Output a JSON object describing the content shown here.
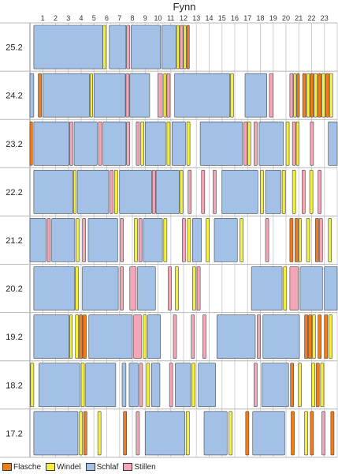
{
  "chart_data": {
    "type": "timeline",
    "title": "Fynn",
    "x_ticks": [
      "1",
      "2",
      "3",
      "4",
      "5",
      "6",
      "7",
      "8",
      "9",
      "10",
      "11",
      "12",
      "13",
      "14",
      "15",
      "16",
      "17",
      "18",
      "19",
      "20",
      "21",
      "22",
      "23"
    ],
    "x_range": [
      0,
      24
    ],
    "rows": [
      "25.2",
      "24.2",
      "23.2",
      "22.2",
      "21.2",
      "20.2",
      "19.2",
      "18.2",
      "17.2"
    ],
    "legend": [
      {
        "key": "flasche",
        "label": "Flasche",
        "color": "#f07d1a"
      },
      {
        "key": "windel",
        "label": "Windel",
        "color": "#f4ee3c"
      },
      {
        "key": "schlaf",
        "label": "Schlaf",
        "color": "#a3c1e6"
      },
      {
        "key": "stillen",
        "label": "Stillen",
        "color": "#f4a6b8"
      }
    ],
    "events": {
      "25.2": [
        {
          "type": "schlaf",
          "start": 0.3,
          "end": 5.7
        },
        {
          "type": "windel",
          "start": 5.7,
          "end": 5.95
        },
        {
          "type": "schlaf",
          "start": 6.2,
          "end": 7.5
        },
        {
          "type": "stillen",
          "start": 7.55,
          "end": 7.8
        },
        {
          "type": "schlaf",
          "start": 7.9,
          "end": 10.2
        },
        {
          "type": "schlaf",
          "start": 10.3,
          "end": 11.4
        },
        {
          "type": "windel",
          "start": 11.45,
          "end": 11.65
        },
        {
          "type": "stillen",
          "start": 11.7,
          "end": 11.95
        },
        {
          "type": "windel",
          "start": 12.0,
          "end": 12.2
        },
        {
          "type": "flasche",
          "start": 12.25,
          "end": 12.45
        }
      ],
      "24.2": [
        {
          "type": "schlaf",
          "start": 0.0,
          "end": 0.3
        },
        {
          "type": "flasche",
          "start": 0.65,
          "end": 0.9
        },
        {
          "type": "schlaf",
          "start": 1.0,
          "end": 4.65
        },
        {
          "type": "windel",
          "start": 4.7,
          "end": 4.9
        },
        {
          "type": "schlaf",
          "start": 5.0,
          "end": 7.45
        },
        {
          "type": "stillen",
          "start": 7.5,
          "end": 7.75
        },
        {
          "type": "schlaf",
          "start": 7.8,
          "end": 9.35
        },
        {
          "type": "stillen",
          "start": 10.0,
          "end": 10.35
        },
        {
          "type": "windel",
          "start": 10.45,
          "end": 10.65
        },
        {
          "type": "stillen",
          "start": 10.7,
          "end": 10.95
        },
        {
          "type": "schlaf",
          "start": 11.3,
          "end": 15.6
        },
        {
          "type": "windel",
          "start": 15.65,
          "end": 15.9
        },
        {
          "type": "schlaf",
          "start": 16.8,
          "end": 18.5
        },
        {
          "type": "stillen",
          "start": 18.7,
          "end": 19.0
        },
        {
          "type": "stillen",
          "start": 20.3,
          "end": 20.55
        },
        {
          "type": "windel",
          "start": 20.6,
          "end": 20.8
        },
        {
          "type": "flasche",
          "start": 20.85,
          "end": 21.05
        },
        {
          "type": "flasche",
          "start": 21.3,
          "end": 21.55
        },
        {
          "type": "windel",
          "start": 21.6,
          "end": 21.85
        },
        {
          "type": "flasche",
          "start": 21.9,
          "end": 22.15
        },
        {
          "type": "windel",
          "start": 22.2,
          "end": 22.45
        },
        {
          "type": "flasche",
          "start": 22.5,
          "end": 22.75
        },
        {
          "type": "windel",
          "start": 22.8,
          "end": 23.05
        },
        {
          "type": "flasche",
          "start": 23.1,
          "end": 23.35
        },
        {
          "type": "windel",
          "start": 23.4,
          "end": 23.65
        }
      ],
      "23.2": [
        {
          "type": "flasche",
          "start": 0.0,
          "end": 0.2
        },
        {
          "type": "schlaf",
          "start": 0.3,
          "end": 3.05
        },
        {
          "type": "stillen",
          "start": 3.1,
          "end": 3.35
        },
        {
          "type": "schlaf",
          "start": 3.45,
          "end": 5.25
        },
        {
          "type": "stillen",
          "start": 5.35,
          "end": 5.6
        },
        {
          "type": "schlaf",
          "start": 5.7,
          "end": 7.5
        },
        {
          "type": "stillen",
          "start": 7.55,
          "end": 7.8
        },
        {
          "type": "stillen",
          "start": 8.3,
          "end": 8.55
        },
        {
          "type": "windel",
          "start": 8.65,
          "end": 8.9
        },
        {
          "type": "schlaf",
          "start": 9.0,
          "end": 10.6
        },
        {
          "type": "windel",
          "start": 10.7,
          "end": 10.95
        },
        {
          "type": "schlaf",
          "start": 11.1,
          "end": 12.15
        },
        {
          "type": "windel",
          "start": 12.25,
          "end": 12.5
        },
        {
          "type": "schlaf",
          "start": 13.3,
          "end": 16.6
        },
        {
          "type": "stillen",
          "start": 16.7,
          "end": 16.95
        },
        {
          "type": "windel",
          "start": 17.0,
          "end": 17.25
        },
        {
          "type": "stillen",
          "start": 17.5,
          "end": 17.75
        },
        {
          "type": "schlaf",
          "start": 17.9,
          "end": 19.8
        },
        {
          "type": "windel",
          "start": 20.0,
          "end": 20.25
        },
        {
          "type": "stillen",
          "start": 20.5,
          "end": 20.75
        },
        {
          "type": "windel",
          "start": 20.8,
          "end": 21.0
        },
        {
          "type": "stillen",
          "start": 21.9,
          "end": 22.15
        },
        {
          "type": "schlaf",
          "start": 23.3,
          "end": 24.0
        }
      ],
      "22.2": [
        {
          "type": "schlaf",
          "start": 0.3,
          "end": 3.35
        },
        {
          "type": "windel",
          "start": 3.4,
          "end": 3.6
        },
        {
          "type": "schlaf",
          "start": 3.7,
          "end": 6.15
        },
        {
          "type": "stillen",
          "start": 6.25,
          "end": 6.5
        },
        {
          "type": "windel",
          "start": 6.6,
          "end": 6.85
        },
        {
          "type": "schlaf",
          "start": 7.0,
          "end": 9.5
        },
        {
          "type": "stillen",
          "start": 9.55,
          "end": 9.8
        },
        {
          "type": "schlaf",
          "start": 9.85,
          "end": 11.65
        },
        {
          "type": "windel",
          "start": 11.7,
          "end": 11.95
        },
        {
          "type": "stillen",
          "start": 12.35,
          "end": 12.6
        },
        {
          "type": "stillen",
          "start": 13.4,
          "end": 13.65
        },
        {
          "type": "stillen",
          "start": 14.3,
          "end": 14.55
        },
        {
          "type": "schlaf",
          "start": 15.0,
          "end": 17.8
        },
        {
          "type": "windel",
          "start": 18.0,
          "end": 18.25
        },
        {
          "type": "schlaf",
          "start": 18.4,
          "end": 19.6
        },
        {
          "type": "windel",
          "start": 19.7,
          "end": 19.95
        },
        {
          "type": "windel",
          "start": 20.5,
          "end": 20.75
        },
        {
          "type": "stillen",
          "start": 21.25,
          "end": 21.5
        },
        {
          "type": "windel",
          "start": 21.85,
          "end": 22.1
        },
        {
          "type": "stillen",
          "start": 22.5,
          "end": 22.75
        }
      ],
      "21.2": [
        {
          "type": "schlaf",
          "start": 0.0,
          "end": 1.25
        },
        {
          "type": "stillen",
          "start": 1.35,
          "end": 1.6
        },
        {
          "type": "schlaf",
          "start": 1.7,
          "end": 3.5
        },
        {
          "type": "windel",
          "start": 3.6,
          "end": 3.85
        },
        {
          "type": "stillen",
          "start": 4.1,
          "end": 4.35
        },
        {
          "type": "schlaf",
          "start": 4.55,
          "end": 6.85
        },
        {
          "type": "stillen",
          "start": 7.05,
          "end": 7.3
        },
        {
          "type": "windel",
          "start": 8.15,
          "end": 8.4
        },
        {
          "type": "stillen",
          "start": 8.5,
          "end": 8.75
        },
        {
          "type": "schlaf",
          "start": 8.85,
          "end": 10.35
        },
        {
          "type": "windel",
          "start": 10.45,
          "end": 10.7
        },
        {
          "type": "stillen",
          "start": 11.9,
          "end": 12.15
        },
        {
          "type": "windel",
          "start": 12.3,
          "end": 12.55
        },
        {
          "type": "schlaf",
          "start": 12.7,
          "end": 13.4
        },
        {
          "type": "windel",
          "start": 13.75,
          "end": 14.0
        },
        {
          "type": "schlaf",
          "start": 14.4,
          "end": 16.2
        },
        {
          "type": "windel",
          "start": 16.4,
          "end": 16.65
        },
        {
          "type": "stillen",
          "start": 18.4,
          "end": 18.65
        },
        {
          "type": "flasche",
          "start": 20.3,
          "end": 20.55
        },
        {
          "type": "flasche",
          "start": 20.7,
          "end": 20.95
        },
        {
          "type": "windel",
          "start": 21.0,
          "end": 21.2
        },
        {
          "type": "windel",
          "start": 21.6,
          "end": 21.85
        },
        {
          "type": "flasche",
          "start": 22.3,
          "end": 22.55
        },
        {
          "type": "stillen",
          "start": 22.6,
          "end": 22.85
        },
        {
          "type": "windel",
          "start": 23.3,
          "end": 23.55
        }
      ],
      "20.2": [
        {
          "type": "schlaf",
          "start": 0.3,
          "end": 3.5
        },
        {
          "type": "windel",
          "start": 3.55,
          "end": 3.8
        },
        {
          "type": "schlaf",
          "start": 4.1,
          "end": 6.9
        },
        {
          "type": "stillen",
          "start": 7.05,
          "end": 7.3
        },
        {
          "type": "stillen",
          "start": 7.8,
          "end": 8.3
        },
        {
          "type": "schlaf",
          "start": 8.4,
          "end": 9.8
        },
        {
          "type": "stillen",
          "start": 10.8,
          "end": 11.05
        },
        {
          "type": "windel",
          "start": 11.35,
          "end": 11.6
        },
        {
          "type": "windel",
          "start": 12.7,
          "end": 12.95
        },
        {
          "type": "stillen",
          "start": 13.05,
          "end": 13.3
        },
        {
          "type": "schlaf",
          "start": 17.3,
          "end": 19.7
        },
        {
          "type": "windel",
          "start": 19.8,
          "end": 20.05
        },
        {
          "type": "stillen",
          "start": 20.3,
          "end": 20.95
        },
        {
          "type": "schlaf",
          "start": 21.1,
          "end": 22.85
        },
        {
          "type": "schlaf",
          "start": 23.0,
          "end": 24.0
        }
      ],
      "19.2": [
        {
          "type": "schlaf",
          "start": 0.3,
          "end": 3.05
        },
        {
          "type": "windel",
          "start": 3.1,
          "end": 3.3
        },
        {
          "type": "windel",
          "start": 3.55,
          "end": 3.8
        },
        {
          "type": "flasche",
          "start": 3.85,
          "end": 4.1
        },
        {
          "type": "flasche",
          "start": 4.15,
          "end": 4.4
        },
        {
          "type": "schlaf",
          "start": 4.6,
          "end": 8.0
        },
        {
          "type": "stillen",
          "start": 8.1,
          "end": 8.7
        },
        {
          "type": "windel",
          "start": 8.85,
          "end": 9.1
        },
        {
          "type": "schlaf",
          "start": 9.2,
          "end": 10.2
        },
        {
          "type": "stillen",
          "start": 11.2,
          "end": 11.45
        },
        {
          "type": "stillen",
          "start": 12.6,
          "end": 12.85
        },
        {
          "type": "stillen",
          "start": 13.5,
          "end": 13.75
        },
        {
          "type": "schlaf",
          "start": 14.6,
          "end": 17.6
        },
        {
          "type": "stillen",
          "start": 17.75,
          "end": 18.0
        },
        {
          "type": "schlaf",
          "start": 18.2,
          "end": 21.05
        },
        {
          "type": "flasche",
          "start": 21.45,
          "end": 21.7
        },
        {
          "type": "flasche",
          "start": 21.75,
          "end": 22.0
        },
        {
          "type": "windel",
          "start": 22.05,
          "end": 22.3
        },
        {
          "type": "flasche",
          "start": 22.5,
          "end": 22.75
        },
        {
          "type": "flasche",
          "start": 23.0,
          "end": 23.25
        },
        {
          "type": "windel",
          "start": 23.35,
          "end": 23.6
        }
      ],
      "18.2": [
        {
          "type": "windel",
          "start": 0.05,
          "end": 0.3
        },
        {
          "type": "schlaf",
          "start": 0.7,
          "end": 3.9
        },
        {
          "type": "windel",
          "start": 4.0,
          "end": 4.25
        },
        {
          "type": "schlaf",
          "start": 4.35,
          "end": 6.7
        },
        {
          "type": "schlaf",
          "start": 7.2,
          "end": 7.5
        },
        {
          "type": "schlaf",
          "start": 7.75,
          "end": 8.45
        },
        {
          "type": "stillen",
          "start": 8.55,
          "end": 8.8
        },
        {
          "type": "windel",
          "start": 9.1,
          "end": 9.35
        },
        {
          "type": "schlaf",
          "start": 9.5,
          "end": 10.15
        },
        {
          "type": "stillen",
          "start": 10.9,
          "end": 11.15
        },
        {
          "type": "schlaf",
          "start": 11.35,
          "end": 12.55
        },
        {
          "type": "windel",
          "start": 12.65,
          "end": 12.9
        },
        {
          "type": "schlaf",
          "start": 13.15,
          "end": 14.5
        },
        {
          "type": "stillen",
          "start": 17.5,
          "end": 17.75
        },
        {
          "type": "schlaf",
          "start": 18.1,
          "end": 20.2
        },
        {
          "type": "flasche",
          "start": 20.35,
          "end": 20.6
        },
        {
          "type": "windel",
          "start": 20.95,
          "end": 21.2
        },
        {
          "type": "windel",
          "start": 22.0,
          "end": 22.25
        },
        {
          "type": "flasche",
          "start": 22.35,
          "end": 22.6
        },
        {
          "type": "windel",
          "start": 22.7,
          "end": 22.95
        }
      ],
      "17.2": [
        {
          "type": "schlaf",
          "start": 0.3,
          "end": 3.75
        },
        {
          "type": "windel",
          "start": 3.85,
          "end": 4.1
        },
        {
          "type": "flasche",
          "start": 4.2,
          "end": 4.45
        },
        {
          "type": "windel",
          "start": 5.3,
          "end": 5.55
        },
        {
          "type": "flasche",
          "start": 7.3,
          "end": 7.55
        },
        {
          "type": "stillen",
          "start": 8.3,
          "end": 8.55
        },
        {
          "type": "schlaf",
          "start": 9.0,
          "end": 12.1
        },
        {
          "type": "windel",
          "start": 12.2,
          "end": 12.45
        },
        {
          "type": "schlaf",
          "start": 13.6,
          "end": 15.4
        },
        {
          "type": "windel",
          "start": 15.55,
          "end": 15.8
        },
        {
          "type": "flasche",
          "start": 16.85,
          "end": 17.1
        },
        {
          "type": "schlaf",
          "start": 17.4,
          "end": 19.9
        },
        {
          "type": "flasche",
          "start": 20.4,
          "end": 20.65
        },
        {
          "type": "windel",
          "start": 21.45,
          "end": 21.7
        },
        {
          "type": "flasche",
          "start": 21.9,
          "end": 22.15
        },
        {
          "type": "stillen",
          "start": 22.8,
          "end": 23.05
        },
        {
          "type": "flasche",
          "start": 23.5,
          "end": 23.75
        }
      ]
    }
  }
}
